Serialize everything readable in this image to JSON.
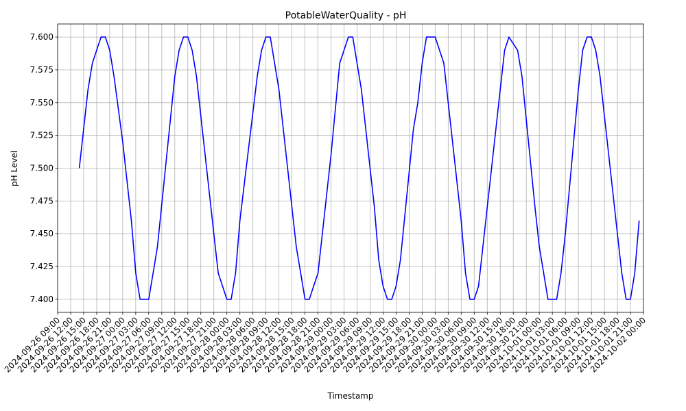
{
  "chart_data": {
    "type": "line",
    "title": "PotableWaterQuality - pH",
    "xlabel": "Timestamp",
    "ylabel": "pH Level",
    "xlim": [
      "2024-09-26 09:00",
      "2024-10-02 00:00"
    ],
    "ylim": [
      7.39,
      7.61
    ],
    "y_ticks": [
      7.4,
      7.425,
      7.45,
      7.475,
      7.5,
      7.525,
      7.55,
      7.575,
      7.6
    ],
    "y_tick_labels": [
      "7.400",
      "7.425",
      "7.450",
      "7.475",
      "7.500",
      "7.525",
      "7.550",
      "7.575",
      "7.600"
    ],
    "x_ticks": [
      "2024-09-26 09:00",
      "2024-09-26 12:00",
      "2024-09-26 15:00",
      "2024-09-26 18:00",
      "2024-09-26 21:00",
      "2024-09-27 00:00",
      "2024-09-27 03:00",
      "2024-09-27 06:00",
      "2024-09-27 09:00",
      "2024-09-27 12:00",
      "2024-09-27 15:00",
      "2024-09-27 18:00",
      "2024-09-27 21:00",
      "2024-09-28 00:00",
      "2024-09-28 03:00",
      "2024-09-28 06:00",
      "2024-09-28 09:00",
      "2024-09-28 12:00",
      "2024-09-28 15:00",
      "2024-09-28 18:00",
      "2024-09-28 21:00",
      "2024-09-29 00:00",
      "2024-09-29 03:00",
      "2024-09-29 06:00",
      "2024-09-29 09:00",
      "2024-09-29 12:00",
      "2024-09-29 15:00",
      "2024-09-29 18:00",
      "2024-09-29 21:00",
      "2024-09-30 00:00",
      "2024-09-30 03:00",
      "2024-09-30 06:00",
      "2024-09-30 09:00",
      "2024-09-30 12:00",
      "2024-09-30 15:00",
      "2024-09-30 18:00",
      "2024-09-30 21:00",
      "2024-10-01 00:00",
      "2024-10-01 03:00",
      "2024-10-01 06:00",
      "2024-10-01 09:00",
      "2024-10-01 12:00",
      "2024-10-01 15:00",
      "2024-10-01 18:00",
      "2024-10-01 21:00",
      "2024-10-02 00:00"
    ],
    "grid": true,
    "legend": "none",
    "series": [
      {
        "color": "#0000ff",
        "points": [
          [
            "2024-09-26 14:00",
            7.5
          ],
          [
            "2024-09-26 16:00",
            7.56
          ],
          [
            "2024-09-26 17:00",
            7.58
          ],
          [
            "2024-09-26 18:00",
            7.59
          ],
          [
            "2024-09-26 19:00",
            7.6
          ],
          [
            "2024-09-26 20:00",
            7.6
          ],
          [
            "2024-09-26 21:00",
            7.59
          ],
          [
            "2024-09-26 22:00",
            7.57
          ],
          [
            "2024-09-27 00:00",
            7.52
          ],
          [
            "2024-09-27 02:00",
            7.46
          ],
          [
            "2024-09-27 03:00",
            7.42
          ],
          [
            "2024-09-27 04:00",
            7.4
          ],
          [
            "2024-09-27 06:00",
            7.4
          ],
          [
            "2024-09-27 07:00",
            7.42
          ],
          [
            "2024-09-27 08:00",
            7.44
          ],
          [
            "2024-09-27 12:00",
            7.57
          ],
          [
            "2024-09-27 13:00",
            7.59
          ],
          [
            "2024-09-27 14:00",
            7.6
          ],
          [
            "2024-09-27 15:00",
            7.6
          ],
          [
            "2024-09-27 16:00",
            7.59
          ],
          [
            "2024-09-27 17:00",
            7.57
          ],
          [
            "2024-09-27 21:00",
            7.45
          ],
          [
            "2024-09-27 22:00",
            7.42
          ],
          [
            "2024-09-27 23:00",
            7.41
          ],
          [
            "2024-09-28 00:00",
            7.4
          ],
          [
            "2024-09-28 01:00",
            7.4
          ],
          [
            "2024-09-28 02:00",
            7.42
          ],
          [
            "2024-09-28 03:00",
            7.46
          ],
          [
            "2024-09-28 07:00",
            7.57
          ],
          [
            "2024-09-28 08:00",
            7.59
          ],
          [
            "2024-09-28 09:00",
            7.6
          ],
          [
            "2024-09-28 10:00",
            7.6
          ],
          [
            "2024-09-28 11:00",
            7.58
          ],
          [
            "2024-09-28 12:00",
            7.56
          ],
          [
            "2024-09-28 16:00",
            7.44
          ],
          [
            "2024-09-28 17:00",
            7.42
          ],
          [
            "2024-09-28 18:00",
            7.4
          ],
          [
            "2024-09-28 19:00",
            7.4
          ],
          [
            "2024-09-28 20:00",
            7.41
          ],
          [
            "2024-09-28 21:00",
            7.42
          ],
          [
            "2024-09-29 00:00",
            7.51
          ],
          [
            "2024-09-29 02:00",
            7.58
          ],
          [
            "2024-09-29 03:00",
            7.59
          ],
          [
            "2024-09-29 04:00",
            7.6
          ],
          [
            "2024-09-29 05:00",
            7.6
          ],
          [
            "2024-09-29 06:00",
            7.58
          ],
          [
            "2024-09-29 07:00",
            7.56
          ],
          [
            "2024-09-29 10:00",
            7.47
          ],
          [
            "2024-09-29 11:00",
            7.43
          ],
          [
            "2024-09-29 12:00",
            7.41
          ],
          [
            "2024-09-29 13:00",
            7.4
          ],
          [
            "2024-09-29 14:00",
            7.4
          ],
          [
            "2024-09-29 15:00",
            7.41
          ],
          [
            "2024-09-29 16:00",
            7.43
          ],
          [
            "2024-09-29 19:00",
            7.53
          ],
          [
            "2024-09-29 20:00",
            7.55
          ],
          [
            "2024-09-29 21:00",
            7.58
          ],
          [
            "2024-09-29 22:00",
            7.6
          ],
          [
            "2024-09-30 00:00",
            7.6
          ],
          [
            "2024-09-30 01:00",
            7.59
          ],
          [
            "2024-09-30 02:00",
            7.58
          ],
          [
            "2024-09-30 04:00",
            7.52
          ],
          [
            "2024-09-30 06:00",
            7.46
          ],
          [
            "2024-09-30 07:00",
            7.42
          ],
          [
            "2024-09-30 08:00",
            7.4
          ],
          [
            "2024-09-30 09:00",
            7.4
          ],
          [
            "2024-09-30 10:00",
            7.41
          ],
          [
            "2024-09-30 11:00",
            7.44
          ],
          [
            "2024-09-30 14:00",
            7.53
          ],
          [
            "2024-09-30 15:00",
            7.56
          ],
          [
            "2024-09-30 16:00",
            7.59
          ],
          [
            "2024-09-30 17:00",
            7.6
          ],
          [
            "2024-09-30 19:00",
            7.59
          ],
          [
            "2024-09-30 20:00",
            7.57
          ],
          [
            "2024-09-30 23:00",
            7.47
          ],
          [
            "2024-10-01 00:00",
            7.44
          ],
          [
            "2024-10-01 01:00",
            7.42
          ],
          [
            "2024-10-01 02:00",
            7.4
          ],
          [
            "2024-10-01 04:00",
            7.4
          ],
          [
            "2024-10-01 05:00",
            7.42
          ],
          [
            "2024-10-01 06:00",
            7.45
          ],
          [
            "2024-10-01 09:00",
            7.56
          ],
          [
            "2024-10-01 10:00",
            7.59
          ],
          [
            "2024-10-01 11:00",
            7.6
          ],
          [
            "2024-10-01 12:00",
            7.6
          ],
          [
            "2024-10-01 13:00",
            7.59
          ],
          [
            "2024-10-01 14:00",
            7.57
          ],
          [
            "2024-10-01 17:00",
            7.48
          ],
          [
            "2024-10-01 18:00",
            7.45
          ],
          [
            "2024-10-01 19:00",
            7.42
          ],
          [
            "2024-10-01 20:00",
            7.4
          ],
          [
            "2024-10-01 21:00",
            7.4
          ],
          [
            "2024-10-01 22:00",
            7.42
          ],
          [
            "2024-10-01 23:00",
            7.46
          ]
        ]
      }
    ]
  }
}
